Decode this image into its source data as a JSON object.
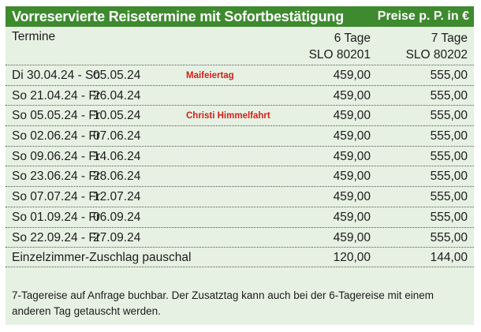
{
  "header": {
    "title": "Vorreservierte Reisetermine mit Sofortbestätigung",
    "prices_note": "Preise p. P. in €"
  },
  "columns": {
    "termine": "Termine",
    "col1_days": "6 Tage",
    "col1_code": "SLO 80201",
    "col2_days": "7 Tage",
    "col2_code": "SLO 80202"
  },
  "colors": {
    "banner": "#3e8a2f",
    "panel": "#e7f1e3",
    "note": "#d0201a"
  },
  "rows": [
    {
      "from": "Di  30.04.24 - So",
      "to": "05.05.24",
      "note": "Maifeiertag",
      "price6": "459,00",
      "price7": "555,00"
    },
    {
      "from": "So  21.04.24 - Fr",
      "to": "26.04.24",
      "note": "",
      "price6": "459,00",
      "price7": "555,00"
    },
    {
      "from": "So  05.05.24 - Fr",
      "to": "10.05.24",
      "note": "Christi Himmelfahrt",
      "price6": "459,00",
      "price7": "555,00"
    },
    {
      "from": "So  02.06.24 - Fr",
      "to": "07.06.24",
      "note": "",
      "price6": "459,00",
      "price7": "555,00"
    },
    {
      "from": "So  09.06.24 - Fr",
      "to": "14.06.24",
      "note": "",
      "price6": "459,00",
      "price7": "555,00"
    },
    {
      "from": "So  23.06.24 - Fr",
      "to": "28.06.24",
      "note": "",
      "price6": "459,00",
      "price7": "555,00"
    },
    {
      "from": "So  07.07.24 - Fr",
      "to": "12.07.24",
      "note": "",
      "price6": "459,00",
      "price7": "555,00"
    },
    {
      "from": "So  01.09.24 - Fr",
      "to": "06.09.24",
      "note": "",
      "price6": "459,00",
      "price7": "555,00"
    },
    {
      "from": "So  22.09.24 - Fr",
      "to": "27.09.24",
      "note": "",
      "price6": "459,00",
      "price7": "555,00"
    }
  ],
  "supplement": {
    "label": "Einzelzimmer-Zuschlag pauschal",
    "price6": "120,00",
    "price7": "144,00"
  },
  "footer": {
    "text": "7-Tagereise auf Anfrage buchbar. Der Zusatztag kann auch bei der 6-Tagereise mit einem anderen Tag getauscht werden."
  }
}
